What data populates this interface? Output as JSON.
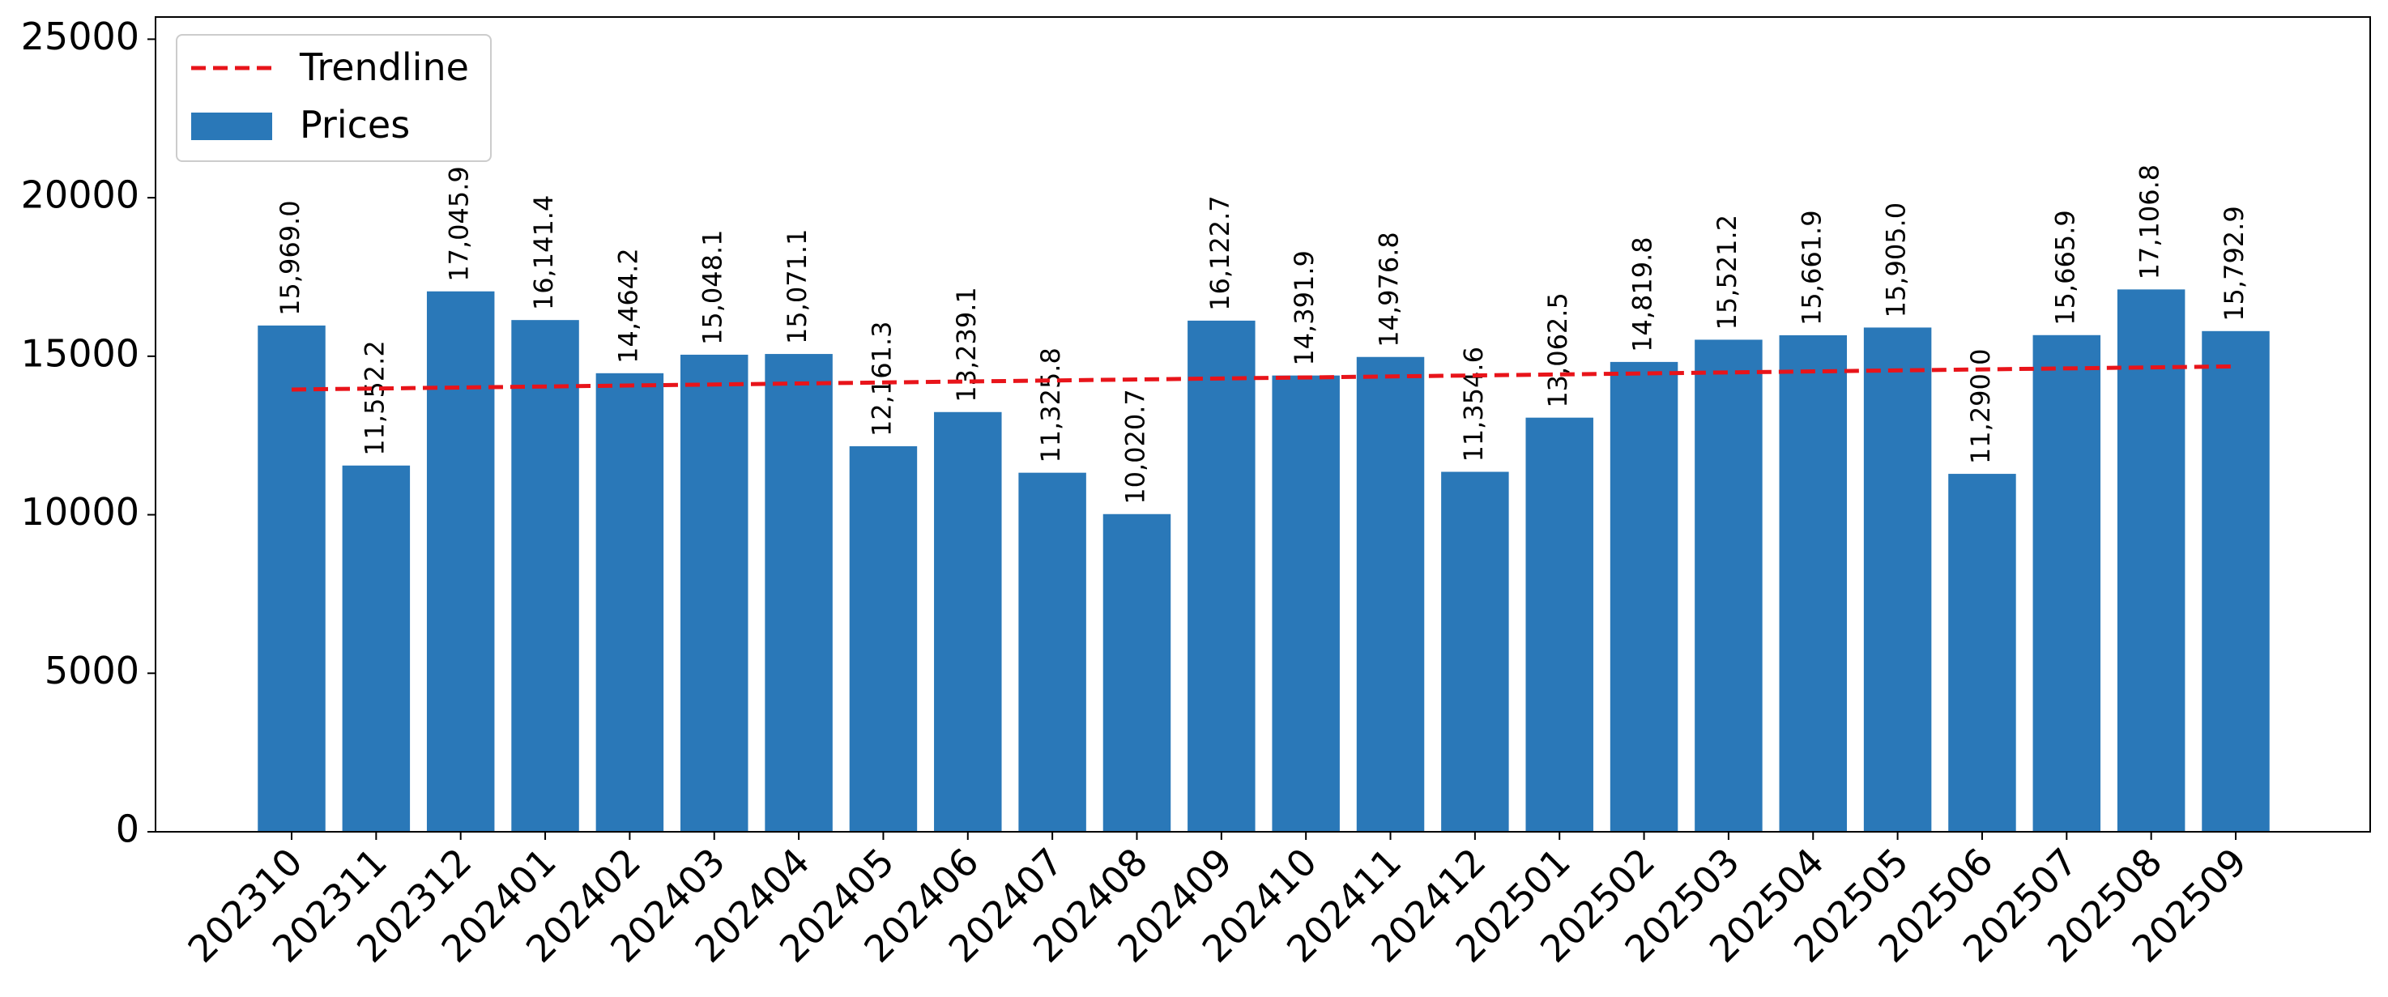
{
  "chart_data": {
    "type": "bar",
    "categories": [
      "202310",
      "202311",
      "202312",
      "202401",
      "202402",
      "202403",
      "202404",
      "202405",
      "202406",
      "202407",
      "202408",
      "202409",
      "202410",
      "202411",
      "202412",
      "202501",
      "202502",
      "202503",
      "202504",
      "202505",
      "202506",
      "202507",
      "202508",
      "202509"
    ],
    "series": [
      {
        "name": "Prices",
        "color": "#2a78b8",
        "values": [
          15969.0,
          11552.2,
          17045.9,
          16141.4,
          14464.2,
          15048.1,
          15071.1,
          12161.3,
          13239.1,
          11325.8,
          10020.7,
          16122.7,
          14391.9,
          14976.8,
          11354.6,
          13062.5,
          14819.8,
          15521.2,
          15661.9,
          15905.0,
          11290.0,
          15665.9,
          17106.8,
          15792.9
        ],
        "labels": [
          "15,969.0",
          "11,552.2",
          "17,045.9",
          "16,141.4",
          "14,464.2",
          "15,048.1",
          "15,071.1",
          "12,161.3",
          "13,239.1",
          "11,325.8",
          "10,020.7",
          "16,122.7",
          "14,391.9",
          "14,976.8",
          "11,354.6",
          "13,062.5",
          "14,819.8",
          "15,521.2",
          "15,661.9",
          "15,905.0",
          "11,290.0",
          "15,665.9",
          "17,106.8",
          "15,792.9"
        ]
      }
    ],
    "trendline": {
      "name": "Trendline",
      "color": "#e8141a",
      "style": "dashed",
      "start": 13950,
      "end": 14680
    },
    "title": "",
    "xlabel": "",
    "ylabel": "",
    "ylim": [
      0,
      25700
    ],
    "yticks": [
      0,
      5000,
      10000,
      15000,
      20000,
      25000
    ],
    "grid": false,
    "legend": {
      "position": "top-left",
      "entries": [
        "Trendline",
        "Prices"
      ]
    }
  }
}
